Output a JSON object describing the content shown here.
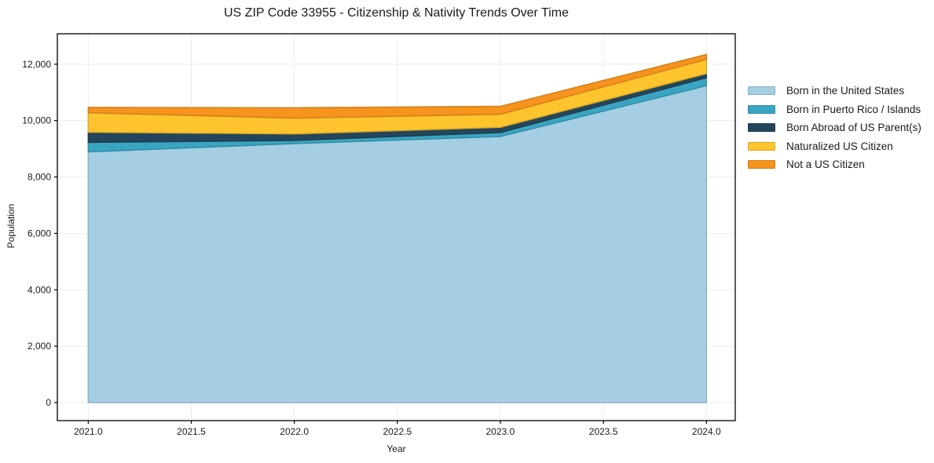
{
  "chart_data": {
    "type": "area",
    "stacked": true,
    "title": "US ZIP Code 33955 - Citizenship & Nativity Trends Over Time",
    "xlabel": "Year",
    "ylabel": "Population",
    "x": [
      2021,
      2022,
      2023,
      2024
    ],
    "series": [
      {
        "name": "Born in the United States",
        "color": "#a5cee3",
        "values": [
          8890,
          9185,
          9435,
          11235
        ]
      },
      {
        "name": "Born in Puerto Rico / Islands",
        "color": "#39a5c2",
        "values": [
          335,
          110,
          140,
          280
        ]
      },
      {
        "name": "Born Abroad of US Parent(s)",
        "color": "#24465c",
        "values": [
          360,
          230,
          185,
          150
        ]
      },
      {
        "name": "Naturalized US Citizen",
        "color": "#fdc42d",
        "values": [
          695,
          560,
          465,
          505
        ]
      },
      {
        "name": "Not a US Citizen",
        "color": "#f6941e",
        "values": [
          190,
          370,
          280,
          175
        ]
      }
    ],
    "xticks": {
      "values": [
        2021.0,
        2021.5,
        2022.0,
        2022.5,
        2023.0,
        2023.5,
        2024.0
      ],
      "labels": [
        "2021.0",
        "2021.5",
        "2022.0",
        "2022.5",
        "2023.0",
        "2023.5",
        "2024.0"
      ]
    },
    "yticks": {
      "values": [
        0,
        2000,
        4000,
        6000,
        8000,
        10000,
        12000
      ],
      "labels": [
        "0",
        "2,000",
        "4,000",
        "6,000",
        "8,000",
        "10,000",
        "12,000"
      ]
    },
    "xlim": [
      2020.85,
      2024.14
    ],
    "ylim": [
      -640,
      13080
    ],
    "grid": true,
    "legend_position": "right"
  },
  "colors": {
    "background": "#ffffff",
    "grid": "#ececec",
    "spine": "#000000",
    "text": "#1a1a1a"
  }
}
